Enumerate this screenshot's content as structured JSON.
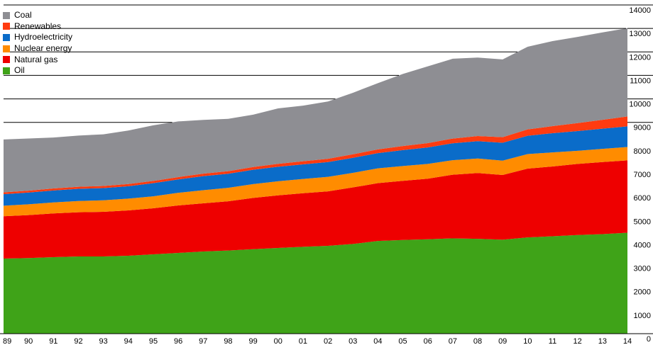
{
  "chart_data": {
    "type": "area",
    "stacked": true,
    "title": "",
    "xlabel": "",
    "ylabel": "",
    "categories": [
      "89",
      "90",
      "91",
      "92",
      "93",
      "94",
      "95",
      "96",
      "97",
      "98",
      "99",
      "00",
      "01",
      "02",
      "03",
      "04",
      "05",
      "06",
      "07",
      "08",
      "09",
      "10",
      "11",
      "12",
      "13",
      "14"
    ],
    "ylim": [
      0,
      14000
    ],
    "y_ticks": [
      "0",
      "1000",
      "2000",
      "3000",
      "4000",
      "5000",
      "6000",
      "7000",
      "8000",
      "9000",
      "10000",
      "11000",
      "12000",
      "13000",
      "14000"
    ],
    "legend_position": "top-left",
    "series": [
      {
        "name": "Oil",
        "color": "#3fa318",
        "values": [
          3200,
          3220,
          3260,
          3290,
          3290,
          3320,
          3380,
          3440,
          3500,
          3540,
          3600,
          3650,
          3700,
          3740,
          3820,
          3950,
          3990,
          4020,
          4060,
          4040,
          4000,
          4100,
          4150,
          4200,
          4240,
          4300
        ]
      },
      {
        "name": "Natural gas",
        "color": "#ee0000",
        "values": [
          1800,
          1830,
          1860,
          1880,
          1900,
          1930,
          1960,
          2020,
          2050,
          2100,
          2180,
          2240,
          2280,
          2320,
          2410,
          2460,
          2520,
          2580,
          2710,
          2800,
          2760,
          2930,
          2970,
          3030,
          3070,
          3080
        ]
      },
      {
        "name": "Nuclear energy",
        "color": "#ff8c00",
        "values": [
          450,
          460,
          470,
          480,
          490,
          500,
          510,
          540,
          560,
          570,
          590,
          600,
          610,
          620,
          620,
          630,
          630,
          630,
          620,
          620,
          610,
          620,
          600,
          560,
          560,
          570
        ]
      },
      {
        "name": "Hydroelectricity",
        "color": "#0a6cc9",
        "values": [
          490,
          500,
          510,
          520,
          520,
          530,
          560,
          570,
          600,
          600,
          610,
          620,
          620,
          630,
          640,
          650,
          680,
          700,
          720,
          740,
          760,
          780,
          820,
          840,
          860,
          880
        ]
      },
      {
        "name": "Renewables",
        "color": "#ff3b10",
        "values": [
          80,
          82,
          85,
          88,
          90,
          92,
          95,
          100,
          105,
          110,
          118,
          125,
          132,
          140,
          150,
          160,
          172,
          185,
          200,
          220,
          240,
          270,
          300,
          340,
          380,
          420
        ]
      },
      {
        "name": "Coal",
        "color": "#8e8e93",
        "values": [
          2250,
          2220,
          2170,
          2180,
          2200,
          2280,
          2370,
          2370,
          2290,
          2230,
          2230,
          2360,
          2370,
          2440,
          2620,
          2820,
          3070,
          3270,
          3400,
          3340,
          3310,
          3520,
          3620,
          3670,
          3720,
          3760
        ]
      }
    ]
  },
  "legend_order": [
    "Coal",
    "Renewables",
    "Hydroelectricity",
    "Nuclear energy",
    "Natural gas",
    "Oil"
  ]
}
